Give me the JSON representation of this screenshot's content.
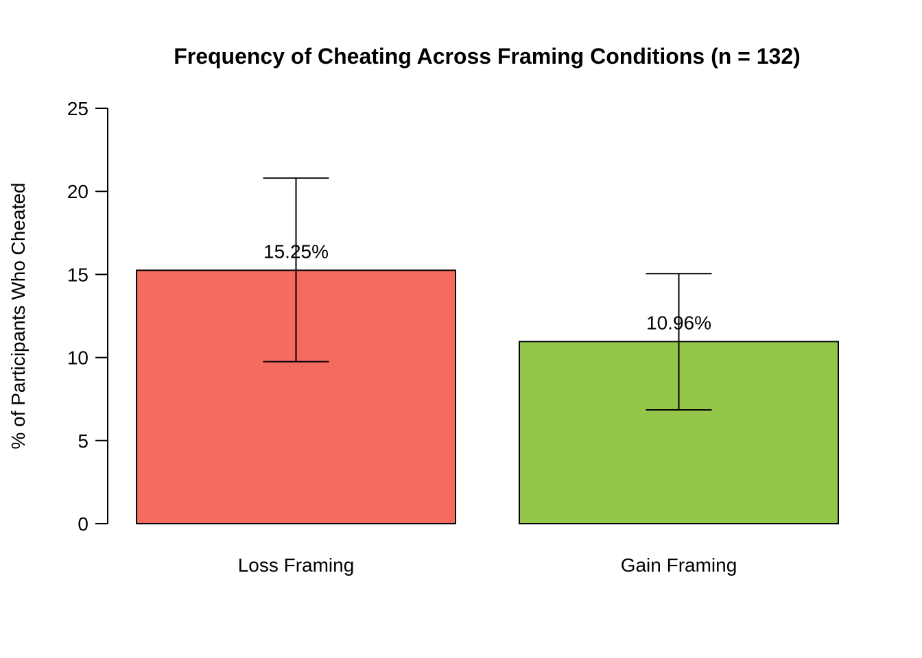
{
  "chart_data": {
    "type": "bar",
    "title": "Frequency of Cheating Across Framing Conditions (n = 132)",
    "xlabel": "",
    "ylabel": "% of Participants Who Cheated",
    "ylim": [
      0,
      25
    ],
    "yticks": [
      0,
      5,
      10,
      15,
      20,
      25
    ],
    "categories": [
      "Loss Framing",
      "Gain Framing"
    ],
    "values": [
      15.25,
      10.96
    ],
    "error_low": [
      9.75,
      6.85
    ],
    "error_high": [
      20.8,
      15.05
    ],
    "data_labels": [
      "15.25%",
      "10.96%"
    ],
    "colors": [
      "#F56B60",
      "#94C64A"
    ],
    "grid": false,
    "legend": "none"
  }
}
